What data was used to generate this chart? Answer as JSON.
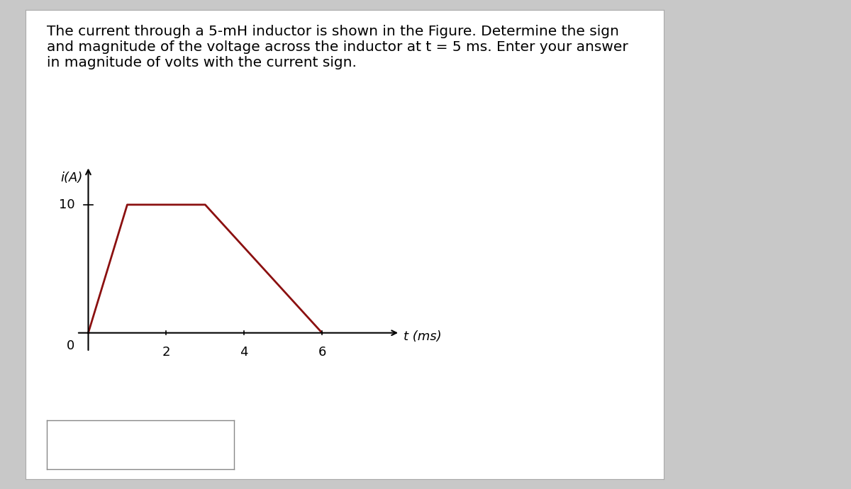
{
  "title_text": "The current through a 5-mH inductor is shown in the Figure. Determine the sign\nand magnitude of the voltage across the inductor at t = 5 ms. Enter your answer\nin magnitude of volts with the current sign.",
  "t_values": [
    0,
    1,
    3,
    6
  ],
  "i_values": [
    0,
    10,
    10,
    0
  ],
  "line_color": "#8B1010",
  "line_width": 2.0,
  "ylabel": "i(A)",
  "xlabel": "t (ms)",
  "x_ticks": [
    2,
    4,
    6
  ],
  "y_ticks": [
    10
  ],
  "y_tick_labels": [
    "10"
  ],
  "x_tick_labels": [
    "2",
    "4",
    "6"
  ],
  "xlim": [
    -0.3,
    8.0
  ],
  "ylim": [
    -1.5,
    13
  ],
  "origin_label": "0",
  "outer_bg_color": "#c8c8c8",
  "card_bg_color": "#ffffff",
  "plot_bg_color": "#e8e8e8",
  "title_fontsize": 14.5,
  "axis_label_fontsize": 13,
  "tick_fontsize": 13
}
